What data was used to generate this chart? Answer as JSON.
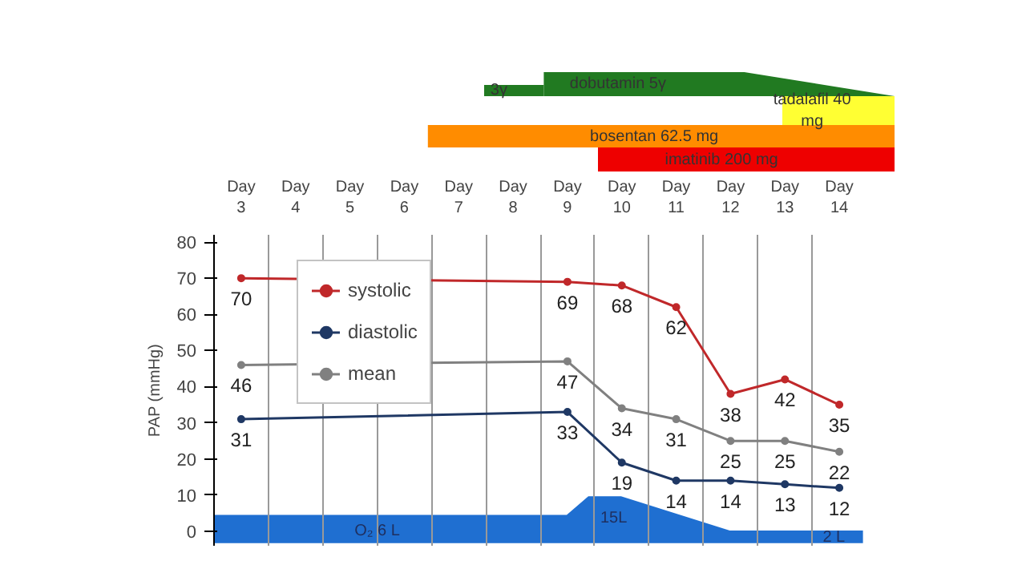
{
  "chart_data": {
    "type": "line",
    "ylabel": "PAP (mmHg)",
    "categories": [
      "Day\n3",
      "Day\n4",
      "Day\n5",
      "Day\n6",
      "Day\n7",
      "Day\n8",
      "Day\n9",
      "Day\n10",
      "Day\n11",
      "Day\n12",
      "Day\n13",
      "Day\n14"
    ],
    "series": [
      {
        "name": "systolic",
        "color": "#c0282a",
        "values": [
          70,
          null,
          null,
          null,
          null,
          null,
          69,
          68,
          62,
          38,
          42,
          35
        ]
      },
      {
        "name": "diastolic",
        "color": "#1f3864",
        "values": [
          31,
          null,
          null,
          null,
          null,
          null,
          33,
          19,
          14,
          14,
          13,
          12
        ]
      },
      {
        "name": "mean",
        "color": "#808080",
        "values": [
          46,
          null,
          null,
          null,
          null,
          null,
          47,
          34,
          31,
          25,
          25,
          22
        ]
      }
    ],
    "ylim": [
      -4,
      82
    ],
    "yticks": [
      0,
      10,
      20,
      30,
      40,
      50,
      60,
      70,
      80
    ],
    "grid": "x",
    "legend": "top left",
    "marker": "circle",
    "line_style": "solid",
    "data_labels": true,
    "annotations": [
      "3γ",
      "dobutamin 5γ",
      "tadalafil 40 mg",
      "bosentan 62.5 mg",
      "imatinib 200 mg",
      "O₂ 6 L",
      "15L",
      "2 L"
    ]
  }
}
